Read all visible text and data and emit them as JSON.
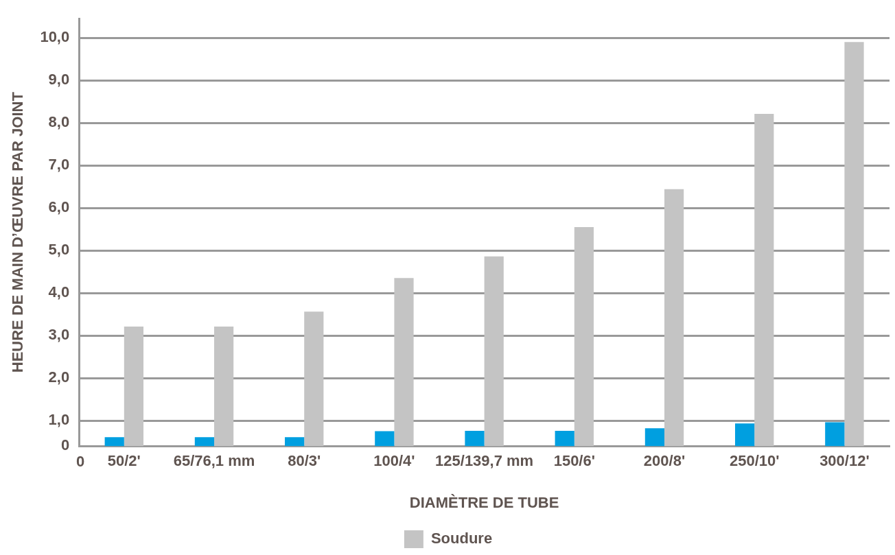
{
  "chart_data": {
    "type": "bar",
    "xlabel": "DIAMÈTRE DE TUBE",
    "ylabel": "HEURE DE MAIN D’ŒUVRE PAR JOINT",
    "categories": [
      "50/2'",
      "65/76,1 mm",
      "80/3'",
      "100/4'",
      "125/139,7 mm",
      "150/6'",
      "200/8'",
      "250/10'",
      "300/12'"
    ],
    "series": [
      {
        "color": "#009fe0",
        "values": [
          0.61,
          0.61,
          0.61,
          0.75,
          0.76,
          0.76,
          0.82,
          0.93,
          0.96
        ]
      },
      {
        "name": "Soudure",
        "color": "#c4c4c4",
        "values": [
          3.21,
          3.21,
          3.56,
          4.35,
          4.86,
          5.55,
          6.44,
          8.21,
          9.9
        ]
      }
    ],
    "ylim": [
      0.4,
      10.45
    ],
    "yticks": [
      {
        "value": 0.4,
        "label": "0"
      },
      {
        "value": 1,
        "label": "1,0"
      },
      {
        "value": 2,
        "label": "2,0"
      },
      {
        "value": 3,
        "label": "3,0"
      },
      {
        "value": 4,
        "label": "4,0"
      },
      {
        "value": 5,
        "label": "5,0"
      },
      {
        "value": 6,
        "label": "6,0"
      },
      {
        "value": 7,
        "label": "7,0"
      },
      {
        "value": 8,
        "label": "8,0"
      },
      {
        "value": 9,
        "label": "9,0"
      },
      {
        "value": 10,
        "label": "10,0"
      }
    ],
    "annotations": [
      "0"
    ],
    "grid": "y",
    "legend": "bottom"
  }
}
